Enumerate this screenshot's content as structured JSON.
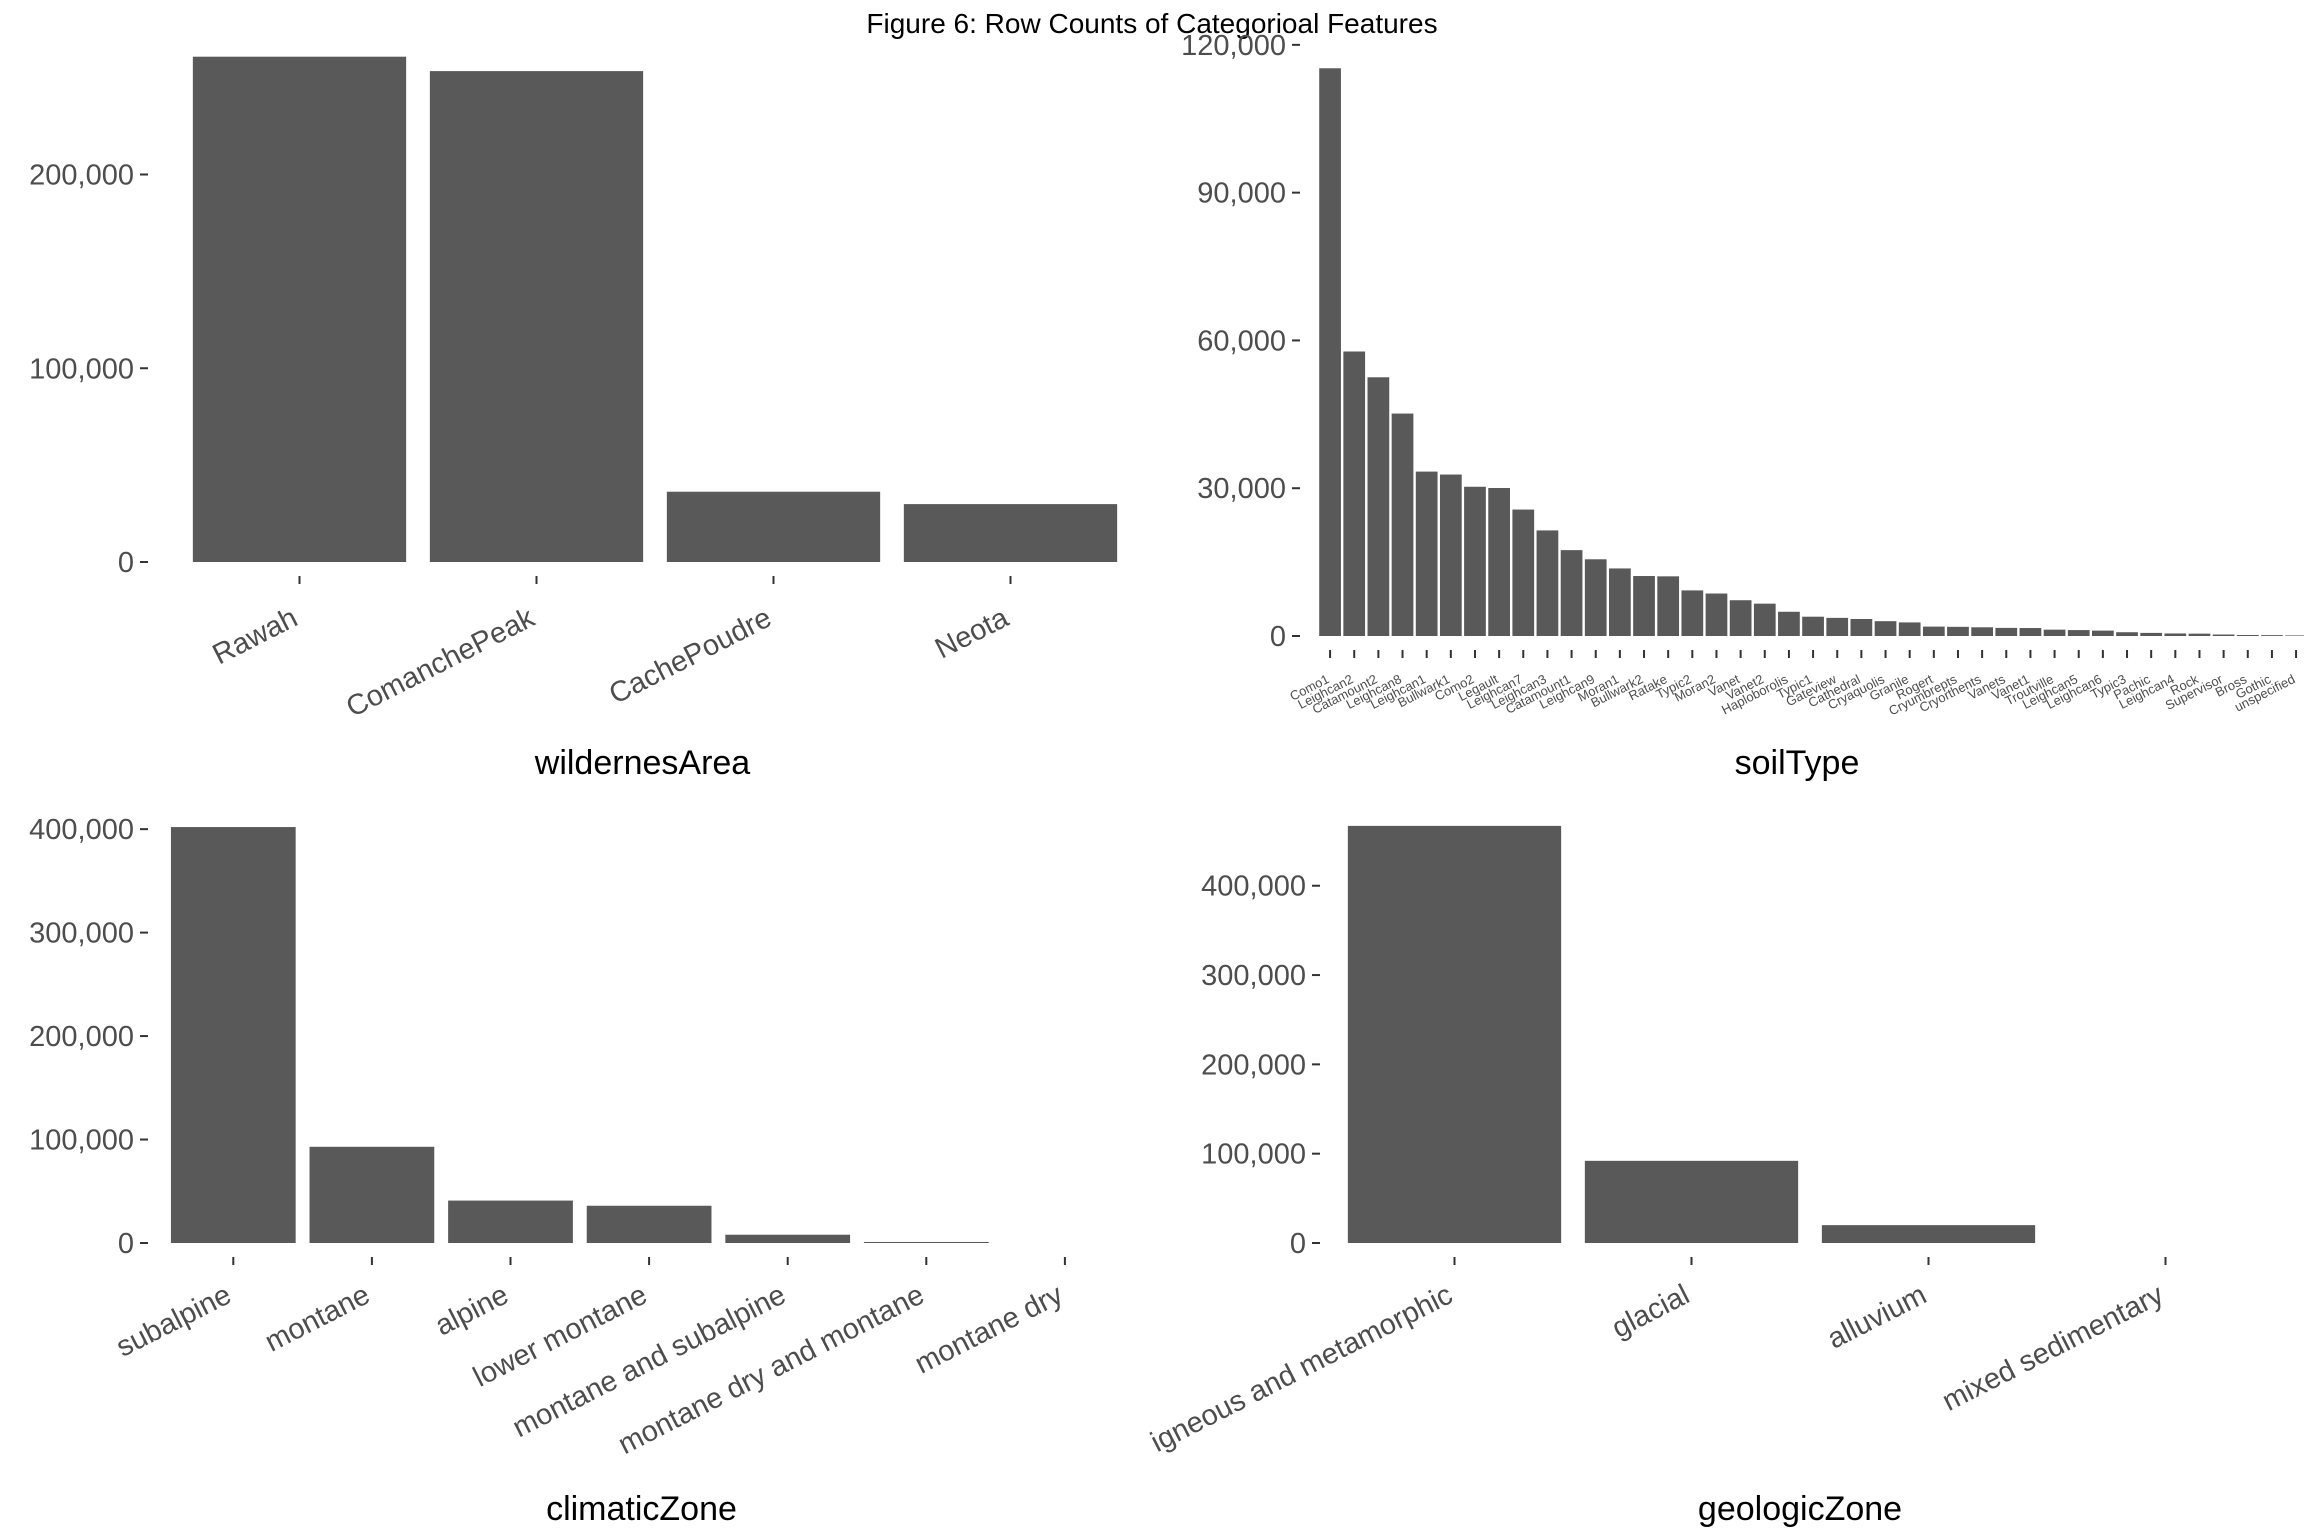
{
  "figure_title": "Figure  6: Row Counts of Categorioal Features",
  "colors": {
    "bar": "#595959",
    "tick": "#333333",
    "tick_label": "#4d4d4d",
    "background": "#ffffff"
  },
  "chart_data": [
    {
      "type": "bar",
      "id": "wildernes",
      "xlabel": "wildernesArea",
      "ylabel": "",
      "categories": [
        "Rawah",
        "ComanchePeak",
        "CachePoudre",
        "Neota"
      ],
      "values": [
        260796,
        253364,
        36268,
        29884
      ],
      "ylim": [
        0,
        272000
      ],
      "yticks": [
        0,
        100000,
        200000
      ],
      "ytick_labels": [
        "0",
        "100,000",
        "200,000"
      ],
      "grid": false,
      "legend": "none"
    },
    {
      "type": "bar",
      "id": "soil",
      "xlabel": "soilType",
      "ylabel": "",
      "categories": [
        "Como1",
        "Leighcan2",
        "Catamount2",
        "Leighcan8",
        "Leighcan1",
        "Bullwark1",
        "Como2",
        "Legault",
        "Leighcan7",
        "Leighcan3",
        "Catamount1",
        "Leighcan9",
        "Moran1",
        "Bullwark2",
        "Ratake",
        "Typic2",
        "Moran2",
        "Vanet",
        "Vanet2",
        "Haploborolis",
        "Typic1",
        "Gateview",
        "Cathedral",
        "Cryaquolis",
        "Granile",
        "Rogert",
        "Cryumbrepts",
        "Cryorthents",
        "Vanets",
        "Vanet1",
        "Troutville",
        "Leighcan5",
        "Leighcan6",
        "Typic3",
        "Pachic",
        "Leighcan4",
        "Rock",
        "Supervisor",
        "Bross",
        "Gothic",
        "unspecified"
      ],
      "values": [
        115247,
        57752,
        52519,
        45154,
        33373,
        32776,
        30295,
        30041,
        25666,
        21434,
        17431,
        15573,
        13713,
        12175,
        12112,
        9255,
        8624,
        7262,
        6567,
        4920,
        3916,
        3680,
        3451,
        3009,
        2757,
        1909,
        1860,
        1766,
        1642,
        1617,
        1287,
        1203,
        1096,
        766,
        630,
        515,
        477,
        301,
        204,
        175,
        114
      ],
      "ylim": [
        0,
        122000
      ],
      "yticks": [
        0,
        30000,
        60000,
        90000,
        120000
      ],
      "ytick_labels": [
        "0",
        "30,000",
        "60,000",
        "90,000",
        "120,000"
      ],
      "grid": false,
      "legend": "none"
    },
    {
      "type": "bar",
      "id": "climatic",
      "xlabel": "climaticZone",
      "ylabel": "",
      "categories": [
        "subalpine",
        "montane",
        "alpine",
        "lower montane",
        "montane and subalpine",
        "montane dry and montane",
        "montane dry"
      ],
      "values": [
        402000,
        93000,
        41000,
        36000,
        8000,
        1000,
        0
      ],
      "ylim": [
        0,
        404000
      ],
      "yticks": [
        0,
        100000,
        200000,
        300000,
        400000
      ],
      "ytick_labels": [
        "0",
        "100,000",
        "200,000",
        "300,000",
        "400,000"
      ],
      "grid": false,
      "legend": "none"
    },
    {
      "type": "bar",
      "id": "geologic",
      "xlabel": "geologicZone",
      "ylabel": "",
      "categories": [
        "igneous and metamorphic",
        "glacial",
        "alluvium",
        "mixed sedimentary"
      ],
      "values": [
        467000,
        92000,
        20000,
        0
      ],
      "ylim": [
        0,
        468000
      ],
      "yticks": [
        0,
        100000,
        200000,
        300000,
        400000
      ],
      "ytick_labels": [
        "0",
        "100,000",
        "200,000",
        "300,000",
        "400,000"
      ],
      "grid": false,
      "legend": "none"
    }
  ]
}
